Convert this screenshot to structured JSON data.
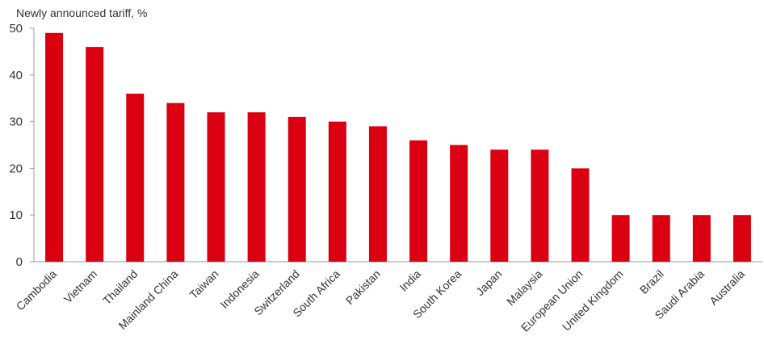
{
  "chart_data": {
    "type": "bar",
    "title": "Newly announced tariff, %",
    "categories": [
      "Cambodia",
      "Vietnam",
      "Thailand",
      "Mainland China",
      "Taiwan",
      "Indonesia",
      "Switzerland",
      "South Africa",
      "Pakistan",
      "India",
      "South Korea",
      "Japan",
      "Malaysia",
      "European Union",
      "United Kingdom",
      "Brazil",
      "Saudi Arabia",
      "Australia"
    ],
    "values": [
      49,
      46,
      36,
      34,
      32,
      32,
      31,
      30,
      29,
      26,
      25,
      24,
      24,
      20,
      10,
      10,
      10,
      10
    ],
    "color": "#db0011",
    "ylim": [
      0,
      50
    ],
    "yticks": [
      0,
      10,
      20,
      30,
      40,
      50
    ],
    "grid": false
  }
}
